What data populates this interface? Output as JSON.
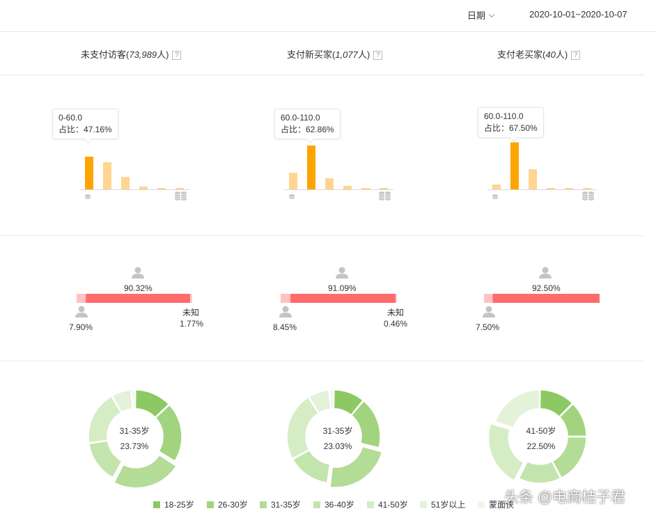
{
  "header": {
    "date_label": "日期",
    "date_range": "2020-10-01~2020-10-07"
  },
  "columns": [
    {
      "title_prefix": "未支付访客(",
      "title_count": "73,989",
      "title_suffix": "人)",
      "help": "?",
      "tooltip_range": "0-60.0",
      "tooltip_share": "占比：47.16%",
      "price_bars": [
        0.47,
        0.39,
        0.18,
        0.04,
        0.02,
        0.02
      ],
      "price_highlight": 0,
      "gender_pct_top": "90.32%",
      "gender_pct_left": "7.90%",
      "gender_unknown_label": "未知",
      "gender_unknown_pct": "1.77%",
      "gender_split": [
        0.079,
        0.9032,
        0.0177
      ],
      "donut_center_label": "31-35岁",
      "donut_center_pct": "23.73%",
      "donut_slices": [
        0.13,
        0.21,
        0.2373,
        0.15,
        0.19,
        0.07,
        0.013
      ]
    },
    {
      "title_prefix": "支付新买家(",
      "title_count": "1,077",
      "title_suffix": "人)",
      "help": "?",
      "tooltip_range": "60.0-110.0",
      "tooltip_share": "占比：62.86%",
      "price_bars": [
        0.24,
        0.63,
        0.16,
        0.05,
        0.02,
        0.02
      ],
      "price_highlight": 1,
      "gender_pct_top": "91.09%",
      "gender_pct_left": "8.45%",
      "gender_unknown_label": "未知",
      "gender_unknown_pct": "0.46%",
      "gender_split": [
        0.0845,
        0.9109,
        0.0046
      ],
      "donut_center_label": "31-35岁",
      "donut_center_pct": "23.03%",
      "donut_slices": [
        0.11,
        0.18,
        0.2303,
        0.15,
        0.24,
        0.075,
        0.015
      ]
    },
    {
      "title_prefix": "支付老买家(",
      "title_count": "40",
      "title_suffix": "人)",
      "help": "?",
      "tooltip_range": "60.0-110.0",
      "tooltip_share": "占比：67.50%",
      "price_bars": [
        0.07,
        0.675,
        0.29,
        0.02,
        0.02,
        0.02
      ],
      "price_highlight": 1,
      "gender_pct_top": "92.50%",
      "gender_pct_left": "7.50%",
      "gender_unknown_label": "",
      "gender_unknown_pct": "",
      "gender_split": [
        0.075,
        0.925,
        0.0
      ],
      "donut_center_label": "41-50岁",
      "donut_center_pct": "22.50%",
      "donut_slices": [
        0.125,
        0.125,
        0.175,
        0.15,
        0.225,
        0.2,
        0.0
      ]
    }
  ],
  "legend": [
    {
      "label": "18-25岁",
      "color": "#8cc963"
    },
    {
      "label": "26-30岁",
      "color": "#a2d47f"
    },
    {
      "label": "31-35岁",
      "color": "#b3dc96"
    },
    {
      "label": "36-40岁",
      "color": "#c4e4ad"
    },
    {
      "label": "41-50岁",
      "color": "#d5ecc5"
    },
    {
      "label": "51岁以上",
      "color": "#e3f2d8"
    },
    {
      "label": "蒙面侠",
      "color": "#eef6e8"
    }
  ],
  "colors": {
    "bar_highlight": "#ffa500",
    "bar_normal": "#ffd591",
    "gender_female": "#ff6b6b",
    "gender_male": "#ffc2c2",
    "icon_grey": "#c4c4c4"
  },
  "watermark": "头条 @电商桔子君"
}
